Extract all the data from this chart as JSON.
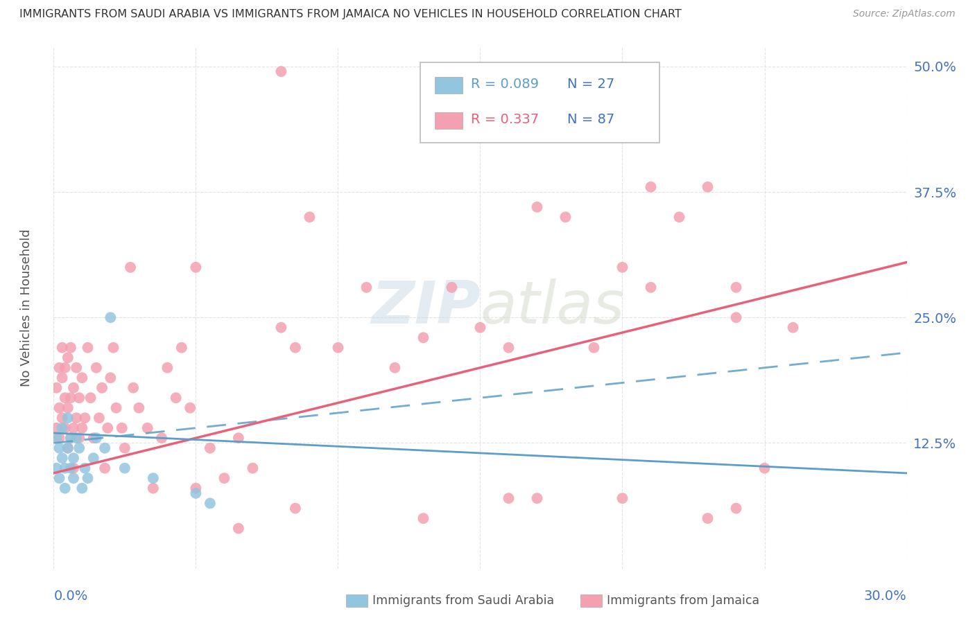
{
  "title": "IMMIGRANTS FROM SAUDI ARABIA VS IMMIGRANTS FROM JAMAICA NO VEHICLES IN HOUSEHOLD CORRELATION CHART",
  "source": "Source: ZipAtlas.com",
  "ylabel": "No Vehicles in Household",
  "xmin": 0.0,
  "xmax": 0.3,
  "ymin": 0.0,
  "ymax": 0.52,
  "ytick_vals": [
    0.0,
    0.125,
    0.25,
    0.375,
    0.5
  ],
  "ytick_labels": [
    "",
    "12.5%",
    "25.0%",
    "37.5%",
    "50.0%"
  ],
  "saudi_R": 0.089,
  "saudi_N": 27,
  "jamaica_R": 0.337,
  "jamaica_N": 87,
  "saudi_color": "#92C5DE",
  "jamaica_color": "#F4A0B0",
  "saudi_line_color": "#5B9EC9",
  "jamaica_line_color": "#E8607A",
  "background_color": "#FFFFFF",
  "grid_color": "#DDDDDD",
  "label_color": "#4472C4",
  "watermark": "ZIPatlas",
  "saudi_x": [
    0.001,
    0.001,
    0.002,
    0.002,
    0.003,
    0.003,
    0.004,
    0.004,
    0.005,
    0.005,
    0.006,
    0.006,
    0.007,
    0.007,
    0.008,
    0.009,
    0.01,
    0.011,
    0.012,
    0.014,
    0.015,
    0.018,
    0.02,
    0.025,
    0.035,
    0.05,
    0.055
  ],
  "saudi_y": [
    0.1,
    0.13,
    0.09,
    0.12,
    0.11,
    0.14,
    0.1,
    0.08,
    0.12,
    0.15,
    0.1,
    0.13,
    0.09,
    0.11,
    0.13,
    0.12,
    0.08,
    0.1,
    0.09,
    0.11,
    0.13,
    0.12,
    0.25,
    0.1,
    0.09,
    0.075,
    0.065
  ],
  "jamaica_x": [
    0.001,
    0.001,
    0.002,
    0.002,
    0.002,
    0.003,
    0.003,
    0.003,
    0.004,
    0.004,
    0.004,
    0.005,
    0.005,
    0.005,
    0.006,
    0.006,
    0.006,
    0.007,
    0.007,
    0.007,
    0.008,
    0.008,
    0.009,
    0.009,
    0.01,
    0.01,
    0.011,
    0.012,
    0.013,
    0.014,
    0.015,
    0.016,
    0.017,
    0.018,
    0.019,
    0.02,
    0.021,
    0.022,
    0.024,
    0.025,
    0.027,
    0.028,
    0.03,
    0.033,
    0.035,
    0.038,
    0.04,
    0.043,
    0.045,
    0.048,
    0.05,
    0.055,
    0.06,
    0.065,
    0.07,
    0.08,
    0.085,
    0.09,
    0.1,
    0.11,
    0.12,
    0.13,
    0.14,
    0.15,
    0.16,
    0.17,
    0.18,
    0.19,
    0.2,
    0.21,
    0.22,
    0.23,
    0.24,
    0.25,
    0.21,
    0.24,
    0.26,
    0.17,
    0.13,
    0.085,
    0.065,
    0.05,
    0.16,
    0.2,
    0.23,
    0.24,
    0.08
  ],
  "jamaica_y": [
    0.14,
    0.18,
    0.16,
    0.2,
    0.13,
    0.15,
    0.19,
    0.22,
    0.14,
    0.17,
    0.2,
    0.12,
    0.16,
    0.21,
    0.13,
    0.17,
    0.22,
    0.14,
    0.18,
    0.1,
    0.15,
    0.2,
    0.13,
    0.17,
    0.14,
    0.19,
    0.15,
    0.22,
    0.17,
    0.13,
    0.2,
    0.15,
    0.18,
    0.1,
    0.14,
    0.19,
    0.22,
    0.16,
    0.14,
    0.12,
    0.3,
    0.18,
    0.16,
    0.14,
    0.08,
    0.13,
    0.2,
    0.17,
    0.22,
    0.16,
    0.3,
    0.12,
    0.09,
    0.13,
    0.1,
    0.24,
    0.22,
    0.35,
    0.22,
    0.28,
    0.2,
    0.23,
    0.28,
    0.24,
    0.22,
    0.36,
    0.35,
    0.22,
    0.3,
    0.28,
    0.35,
    0.38,
    0.28,
    0.1,
    0.38,
    0.25,
    0.24,
    0.07,
    0.05,
    0.06,
    0.04,
    0.08,
    0.07,
    0.07,
    0.05,
    0.06,
    0.495
  ],
  "saudi_line_x": [
    0.0,
    0.3
  ],
  "saudi_line_y": [
    0.135,
    0.095
  ],
  "saudi_dash_line_x": [
    0.0,
    0.3
  ],
  "saudi_dash_line_y": [
    0.125,
    0.215
  ],
  "jamaica_line_x": [
    0.0,
    0.3
  ],
  "jamaica_line_y": [
    0.095,
    0.305
  ]
}
